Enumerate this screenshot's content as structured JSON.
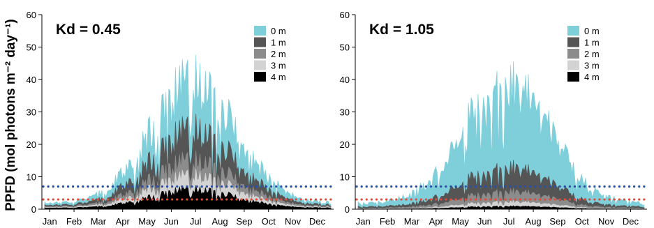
{
  "figure": {
    "ylabel": "PPFD (mol photons m⁻² day⁻¹)"
  },
  "chart_data": [
    {
      "type": "area",
      "title": "Kd = 0.45",
      "ylim": [
        0,
        60
      ],
      "yticks": [
        0,
        10,
        20,
        30,
        40,
        50,
        60
      ],
      "categories": [
        "Jan",
        "Feb",
        "Mar",
        "Apr",
        "May",
        "Jun",
        "Jul",
        "Aug",
        "Sep",
        "Oct",
        "Nov",
        "Dec"
      ],
      "legend": {
        "position": "top-right"
      },
      "series": [
        {
          "name": "0 m",
          "color": "#7fcfdb",
          "peak": 52,
          "seasonal_peak": 42,
          "winter": 2
        },
        {
          "name": "1 m",
          "color": "#555555",
          "peak": 30,
          "seasonal_peak": 26,
          "winter": 1.3
        },
        {
          "name": "2 m",
          "color": "#8c8c8c",
          "peak": 20,
          "seasonal_peak": 16,
          "winter": 0.9
        },
        {
          "name": "3 m",
          "color": "#d3d3d3",
          "peak": 14,
          "seasonal_peak": 11,
          "winter": 0.6
        },
        {
          "name": "4 m",
          "color": "#000000",
          "peak": 8,
          "seasonal_peak": 6.5,
          "winter": 0.4
        }
      ],
      "reference_lines": [
        {
          "value": 7,
          "color": "#2b50a3",
          "style": "dotted"
        },
        {
          "value": 3,
          "color": "#e04b3a",
          "style": "dotted"
        }
      ]
    },
    {
      "type": "area",
      "title": "Kd = 1.05",
      "ylim": [
        0,
        60
      ],
      "yticks": [
        0,
        10,
        20,
        30,
        40,
        50,
        60
      ],
      "categories": [
        "Jan",
        "Feb",
        "Mar",
        "Apr",
        "May",
        "Jun",
        "Jul",
        "Aug",
        "Sep",
        "Oct",
        "Nov",
        "Dec"
      ],
      "legend": {
        "position": "top-right"
      },
      "series": [
        {
          "name": "0 m",
          "color": "#7fcfdb",
          "peak": 52,
          "seasonal_peak": 42,
          "winter": 2
        },
        {
          "name": "1 m",
          "color": "#555555",
          "peak": 17,
          "seasonal_peak": 14,
          "winter": 0.8
        },
        {
          "name": "2 m",
          "color": "#8c8c8c",
          "peak": 8,
          "seasonal_peak": 6,
          "winter": 0.35
        },
        {
          "name": "3 m",
          "color": "#d3d3d3",
          "peak": 3.5,
          "seasonal_peak": 2.5,
          "winter": 0.15
        },
        {
          "name": "4 m",
          "color": "#000000",
          "peak": 1.5,
          "seasonal_peak": 1,
          "winter": 0.05
        }
      ],
      "reference_lines": [
        {
          "value": 7,
          "color": "#2b50a3",
          "style": "dotted"
        },
        {
          "value": 3,
          "color": "#e04b3a",
          "style": "dotted"
        }
      ]
    }
  ]
}
